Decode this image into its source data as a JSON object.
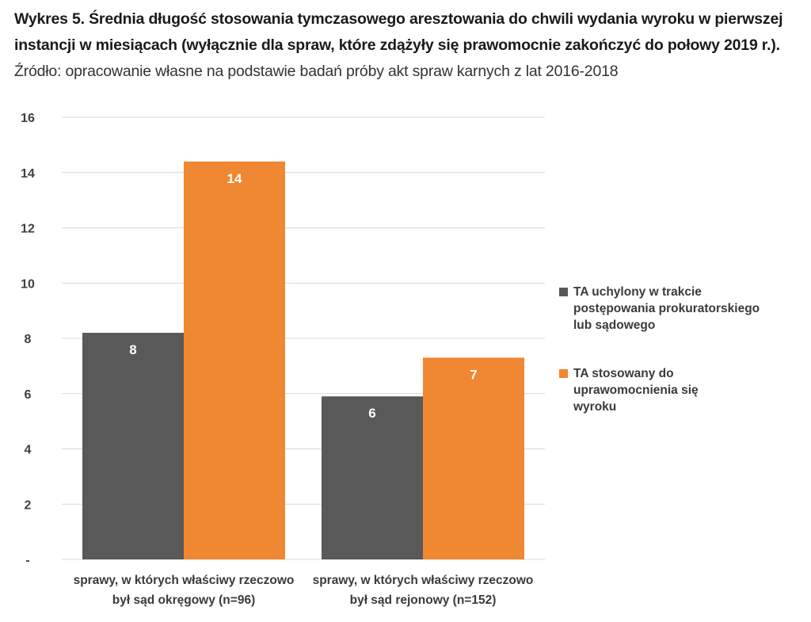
{
  "caption": {
    "bold_part": "Wykres 5. Średnia długość stosowania tymczasowego aresztowania do chwili wydania wyroku w pierwszej instancji w miesiącach (wyłącznie dla spraw, które zdążyły się prawomocnie zakończyć do połowy 2019 r.).",
    "normal_part": " Źródło: opracowanie własne na podstawie badań próby akt spraw karnych z lat 2016-2018"
  },
  "chart_data": {
    "type": "bar",
    "categories": [
      "sprawy, w których właściwy rzeczowo był sąd okręgowy (n=96)",
      "sprawy, w których właściwy rzeczowo był sąd rejonowy (n=152)"
    ],
    "category_lines": [
      [
        "sprawy, w których właściwy rzeczowo",
        "był sąd okręgowy (n=96)"
      ],
      [
        "sprawy, w których właściwy rzeczowo",
        "był sąd rejonowy (n=152)"
      ]
    ],
    "series": [
      {
        "name": "TA uchylony w trakcie postępowania prokuratorskiego lub sądowego",
        "name_lines": [
          "TA uchylony w trakcie",
          "postępowania prokuratorskiego",
          "lub sądowego"
        ],
        "color": "#595959",
        "values": [
          8.2,
          5.9
        ],
        "labels": [
          "8",
          "6"
        ]
      },
      {
        "name": "TA stosowany do uprawomocnienia się wyroku",
        "name_lines": [
          "TA stosowany do",
          "uprawomocnienia się",
          "wyroku"
        ],
        "color": "#f08732",
        "values": [
          14.4,
          7.3
        ],
        "labels": [
          "14",
          "7"
        ]
      }
    ],
    "y_ticks": [
      "-",
      "2",
      "4",
      "6",
      "8",
      "10",
      "12",
      "14",
      "16"
    ],
    "y_tick_values": [
      0,
      2,
      4,
      6,
      8,
      10,
      12,
      14,
      16
    ],
    "ylim": [
      0,
      16
    ],
    "grid": true,
    "legend_position": "right"
  }
}
